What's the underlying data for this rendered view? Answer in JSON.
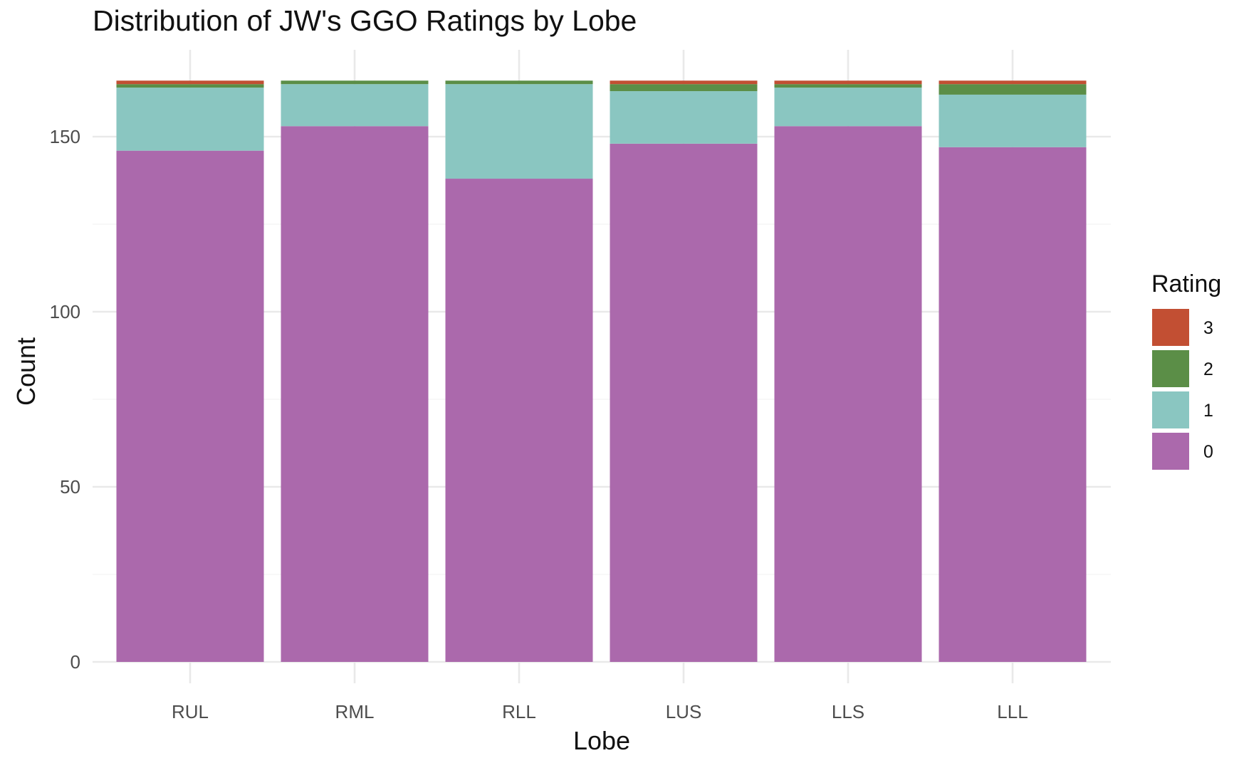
{
  "chart_data": {
    "type": "bar",
    "stacked": true,
    "title": "Distribution of JW's GGO Ratings by Lobe",
    "xlabel": "Lobe",
    "ylabel": "Count",
    "categories": [
      "RUL",
      "RML",
      "RLL",
      "LUS",
      "LLS",
      "LLL"
    ],
    "ylim": [
      0,
      166
    ],
    "yticks": [
      0,
      50,
      100,
      150
    ],
    "grid": true,
    "legend": {
      "title": "Rating",
      "position": "right",
      "order": [
        "3",
        "2",
        "1",
        "0"
      ]
    },
    "series": [
      {
        "name": "0",
        "color": "#AB69AC",
        "values": [
          146,
          153,
          138,
          148,
          153,
          147
        ]
      },
      {
        "name": "1",
        "color": "#8AC6C1",
        "values": [
          18,
          12,
          27,
          15,
          11,
          15
        ]
      },
      {
        "name": "2",
        "color": "#5B8E47",
        "values": [
          1,
          1,
          1,
          2,
          1,
          3
        ]
      },
      {
        "name": "3",
        "color": "#C24F33",
        "values": [
          1,
          0,
          0,
          1,
          1,
          1
        ]
      }
    ]
  }
}
